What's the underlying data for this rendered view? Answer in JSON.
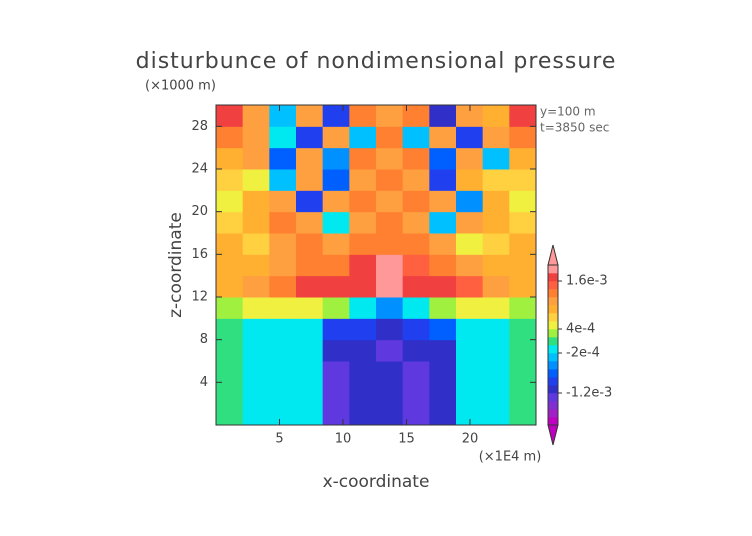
{
  "chart_data": {
    "type": "heatmap",
    "title": "disturbunce of nondimensional pressure",
    "y_unit": "(×1000 m)",
    "annotations": [
      "y=100 m",
      "t=3850 sec"
    ],
    "xlabel": "x-coordinate",
    "ylabel": "z-coordinate",
    "x_unit": "(×1E4 m)",
    "xlim": [
      0,
      25.2
    ],
    "ylim": [
      0,
      30
    ],
    "xticks": [
      5,
      10,
      15,
      20
    ],
    "yticks": [
      4,
      8,
      12,
      16,
      20,
      24,
      28
    ],
    "xbins": [
      0,
      2.1,
      4.2,
      6.3,
      8.4,
      10.5,
      12.6,
      14.7,
      16.8,
      18.9,
      21,
      23.1,
      25.2
    ],
    "ybins": [
      0,
      2,
      4,
      6,
      8,
      10,
      12,
      14,
      16,
      18,
      20,
      22,
      24,
      26,
      28,
      30
    ],
    "z": [
      [
        0.0001,
        -0.0001,
        -0.0001,
        -0.0001,
        -0.0014,
        -0.0011,
        -0.0012,
        -0.0014,
        -0.0011,
        -0.0001,
        -0.0001,
        0.0001
      ],
      [
        0.0001,
        -0.0001,
        -0.0001,
        -0.0001,
        -0.0014,
        -0.0011,
        -0.0012,
        -0.0014,
        -0.0011,
        -0.0001,
        -0.0001,
        0.0001
      ],
      [
        0.0001,
        -0.0001,
        -0.0001,
        -0.0001,
        -0.0013,
        -0.0011,
        -0.0012,
        -0.0013,
        -0.0011,
        -0.0001,
        -0.0001,
        0.0001
      ],
      [
        0.0001,
        -0.0001,
        -0.0001,
        -0.0001,
        -0.0011,
        -0.0011,
        -0.0013,
        -0.0011,
        -0.0011,
        -0.0001,
        -0.0001,
        0.0001
      ],
      [
        0.0001,
        -0.0001,
        -0.0001,
        -0.0001,
        -0.0009,
        -0.001,
        -0.0012,
        -0.001,
        -0.0008,
        -0.0001,
        -0.0001,
        0.0001
      ],
      [
        0.0003,
        0.0005,
        0.0005,
        0.0005,
        0.0003,
        -0.0002,
        -0.0006,
        -0.0002,
        0.0003,
        0.0005,
        0.0005,
        0.0003
      ],
      [
        0.0009,
        0.0011,
        0.0013,
        0.0017,
        0.0017,
        0.0017,
        0.0019,
        0.0017,
        0.0017,
        0.0015,
        0.0011,
        0.0009
      ],
      [
        0.0009,
        0.0009,
        0.0011,
        0.0013,
        0.0013,
        0.0017,
        0.0019,
        0.0015,
        0.0013,
        0.0011,
        0.0009,
        0.0009
      ],
      [
        0.0009,
        0.0007,
        0.0011,
        0.0013,
        0.0011,
        0.0013,
        0.0013,
        0.0013,
        0.0011,
        0.0005,
        0.0007,
        0.0009
      ],
      [
        0.0007,
        0.0009,
        0.0013,
        0.0011,
        -0.0001,
        0.0011,
        0.0013,
        0.0011,
        -0.0003,
        0.0011,
        0.0009,
        0.0007
      ],
      [
        0.0005,
        0.0009,
        0.0011,
        -0.0009,
        0.0011,
        0.0013,
        0.0011,
        0.0013,
        0.0011,
        -0.0005,
        0.0009,
        0.0005
      ],
      [
        0.0007,
        0.0005,
        -0.0003,
        0.0011,
        -0.0007,
        0.0011,
        0.0013,
        0.0011,
        -0.0009,
        0.0009,
        0.0007,
        0.0007
      ],
      [
        0.0009,
        0.0011,
        -0.0007,
        0.0011,
        -0.0005,
        0.0013,
        0.0011,
        0.0013,
        -0.0007,
        0.0011,
        -0.0003,
        0.0009
      ],
      [
        0.0013,
        0.0011,
        -0.0001,
        -0.0009,
        0.0011,
        -0.0003,
        0.0013,
        -0.0003,
        0.0011,
        -0.0009,
        0.0011,
        0.0013
      ],
      [
        0.0017,
        0.0011,
        -0.0003,
        0.0011,
        -0.0009,
        0.0013,
        0.0011,
        0.0013,
        -0.0011,
        0.0011,
        0.0009,
        0.0017
      ]
    ],
    "clim": [
      -0.002,
      0.002
    ],
    "colors": [
      "#c000c0",
      "#a020c8",
      "#8030d0",
      "#6038e0",
      "#3030c8",
      "#2040f0",
      "#0060ff",
      "#0090ff",
      "#00c0ff",
      "#00e8f0",
      "#30e080",
      "#a0f040",
      "#f0f040",
      "#ffd040",
      "#ffb030",
      "#ffa040",
      "#ff8030",
      "#ff6040",
      "#f04040",
      "#ff9898"
    ],
    "cticks": [
      {
        "value": 0.0016,
        "label": "1.6e-3"
      },
      {
        "value": 0.0004,
        "label": "4e-4"
      },
      {
        "value": -0.0002,
        "label": "-2e-4"
      },
      {
        "value": -0.0012,
        "label": "-1.2e-3"
      }
    ]
  }
}
